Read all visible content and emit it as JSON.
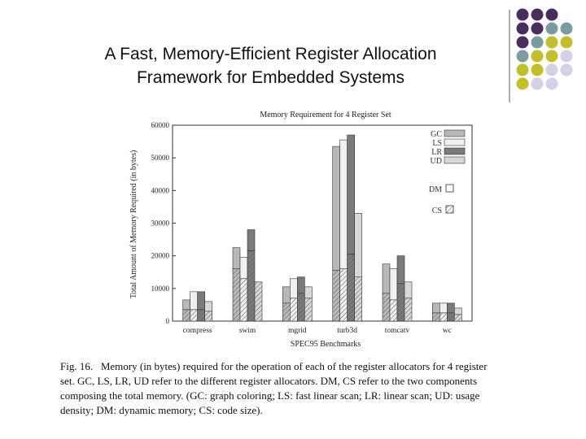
{
  "slide": {
    "title_line1": "A Fast, Memory-Efficient Register Allocation",
    "title_line2": "Framework for Embedded Systems"
  },
  "decoration": {
    "colors": {
      "purple": "#4a2d5e",
      "teal": "#7a9ca0",
      "olive": "#c2bf2a",
      "lavender": "#d3d1e3"
    },
    "rows": [
      [
        "purple",
        "purple",
        "purple"
      ],
      [
        "purple",
        "purple",
        "teal",
        "teal"
      ],
      [
        "purple",
        "teal",
        "olive",
        "olive"
      ],
      [
        "teal",
        "olive",
        "olive",
        "lavender"
      ],
      [
        "olive",
        "olive",
        "lavender",
        "lavender"
      ],
      [
        "olive",
        "lavender",
        "lavender"
      ]
    ]
  },
  "chart_data": {
    "type": "bar",
    "title": "Memory Requirement for 4 Register Set",
    "xlabel": "SPEC95 Benchmarks",
    "ylabel": "Total Amount of Memory Required (in bytes)",
    "ylim": [
      0,
      60000
    ],
    "yticks": [
      0,
      10000,
      20000,
      30000,
      40000,
      50000,
      60000
    ],
    "categories": [
      "compress",
      "swim",
      "mgrid",
      "turb3d",
      "tomcatv",
      "wc"
    ],
    "stack_components": [
      {
        "name": "DM",
        "style": "plain"
      },
      {
        "name": "CS",
        "style": "hatched"
      }
    ],
    "legend_position": "right",
    "series": [
      {
        "name": "GC",
        "color": "#b8b8b8",
        "total": [
          6500,
          22500,
          10500,
          53500,
          17500,
          5500
        ],
        "cs": [
          3500,
          16000,
          5500,
          15500,
          8500,
          2500
        ]
      },
      {
        "name": "LS",
        "color": "#f0f0f0",
        "total": [
          9000,
          19500,
          13000,
          55500,
          16000,
          5500
        ],
        "cs": [
          3500,
          13000,
          7000,
          16000,
          6500,
          2500
        ]
      },
      {
        "name": "LR",
        "color": "#7a7a7a",
        "total": [
          9000,
          28000,
          13500,
          57000,
          20000,
          5500
        ],
        "cs": [
          3500,
          21500,
          8500,
          20500,
          11500,
          2500
        ]
      },
      {
        "name": "UD",
        "color": "#d8d8d8",
        "total": [
          6000,
          12000,
          10500,
          33000,
          12000,
          4000
        ],
        "cs": [
          3000,
          12000,
          7000,
          13500,
          7000,
          2000
        ]
      }
    ]
  },
  "caption": {
    "label": "Fig. 16.",
    "line1": "Memory (in bytes) required for the operation of each of the register allocators for 4 register",
    "line2": "set. GC, LS, LR, UD refer to the different register allocators. DM, CS refer to the two components",
    "line3": "composing the total memory. (GC: graph coloring; LS: fast linear scan; LR: linear scan; UD: usage",
    "line4": "density; DM: dynamic memory; CS: code size)."
  }
}
